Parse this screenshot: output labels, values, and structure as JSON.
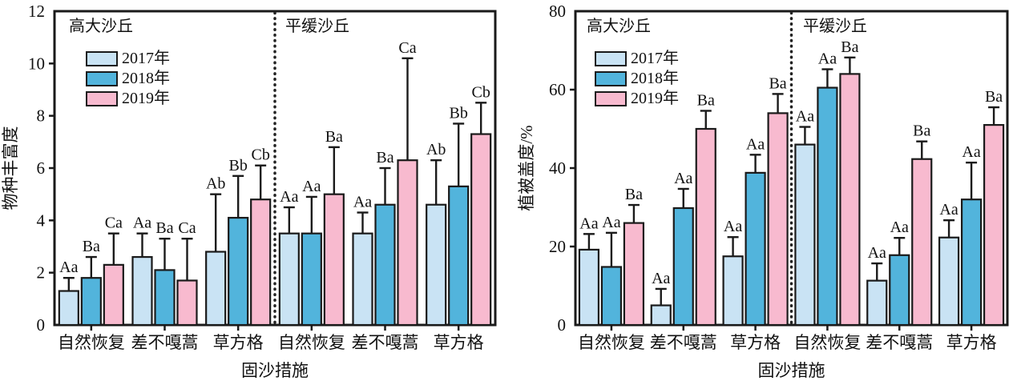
{
  "page": {
    "background": "#ffffff",
    "bar_outline_color": "#1a1a1a"
  },
  "chart_data": [
    {
      "type": "bar",
      "title": "",
      "region_titles": [
        "高大沙丘",
        "平缓沙丘"
      ],
      "ylabel": "物种丰富度",
      "xlabel": "固沙措施",
      "ylim": [
        0,
        12
      ],
      "yticks": [
        0,
        2,
        4,
        6,
        8,
        10,
        12
      ],
      "grid": false,
      "legend_position": "top-left-inside",
      "legend": [
        "2017年",
        "2018年",
        "2019年"
      ],
      "categories": [
        "自然恢复",
        "差不嘎蒿",
        "草方格",
        "自然恢复",
        "差不嘎蒿",
        "草方格"
      ],
      "series": [
        {
          "name": "2017年",
          "color": "#c9e3f4",
          "values": [
            1.3,
            2.6,
            2.8,
            3.5,
            3.5,
            4.6
          ],
          "err_top": [
            1.8,
            3.5,
            5.0,
            4.5,
            4.3,
            6.3
          ],
          "sig": [
            "Aa",
            "Aa",
            "Ab",
            "Aa",
            "Aa",
            "Ab"
          ]
        },
        {
          "name": "2018年",
          "color": "#52b4dc",
          "values": [
            1.8,
            2.1,
            4.1,
            3.5,
            4.6,
            5.3
          ],
          "err_top": [
            2.6,
            3.3,
            5.7,
            4.9,
            6.0,
            7.7
          ],
          "sig": [
            "Ba",
            "Ba",
            "Bb",
            "Aa",
            "Ba",
            "Bb"
          ]
        },
        {
          "name": "2019年",
          "color": "#f8bacf",
          "values": [
            2.3,
            1.7,
            4.8,
            5.0,
            6.3,
            7.3
          ],
          "err_top": [
            3.5,
            3.3,
            6.1,
            6.8,
            10.2,
            8.5
          ],
          "sig": [
            "Ca",
            "Ca",
            "Cb",
            "Ba",
            "Ca",
            "Cb"
          ]
        }
      ]
    },
    {
      "type": "bar",
      "title": "",
      "region_titles": [
        "高大沙丘",
        "平缓沙丘"
      ],
      "ylabel": "植被盖度/%",
      "xlabel": "固沙措施",
      "ylim": [
        0,
        80
      ],
      "yticks": [
        0,
        20,
        40,
        60,
        80
      ],
      "grid": false,
      "legend_position": "top-left-inside",
      "legend": [
        "2017年",
        "2018年",
        "2019年"
      ],
      "categories": [
        "自然恢复",
        "差不嘎蒿",
        "草方格",
        "自然恢复",
        "差不嘎蒿",
        "草方格"
      ],
      "series": [
        {
          "name": "2017年",
          "color": "#c9e3f4",
          "values": [
            19.2,
            5.0,
            17.5,
            46.0,
            11.3,
            22.3
          ],
          "err_top": [
            23.2,
            9.2,
            22.4,
            50.5,
            15.7,
            26.7
          ],
          "sig": [
            "Aa",
            "Aa",
            "Aa",
            "Aa",
            "Aa",
            "Aa"
          ]
        },
        {
          "name": "2018年",
          "color": "#52b4dc",
          "values": [
            14.8,
            29.8,
            38.8,
            60.5,
            17.8,
            32.0
          ],
          "err_top": [
            23.5,
            34.7,
            43.4,
            65.2,
            22.2,
            41.4
          ],
          "sig": [
            "Aa",
            "Aa",
            "Aa",
            "Aa",
            "Aa",
            "Aa"
          ]
        },
        {
          "name": "2019年",
          "color": "#f8bacf",
          "values": [
            26.0,
            50.0,
            54.0,
            64.0,
            42.3,
            51.0
          ],
          "err_top": [
            30.6,
            54.6,
            58.9,
            68.2,
            46.8,
            55.5
          ],
          "sig": [
            "Ba",
            "Ba",
            "Ba",
            "Ba",
            "Ba",
            "Ba"
          ]
        }
      ]
    }
  ]
}
